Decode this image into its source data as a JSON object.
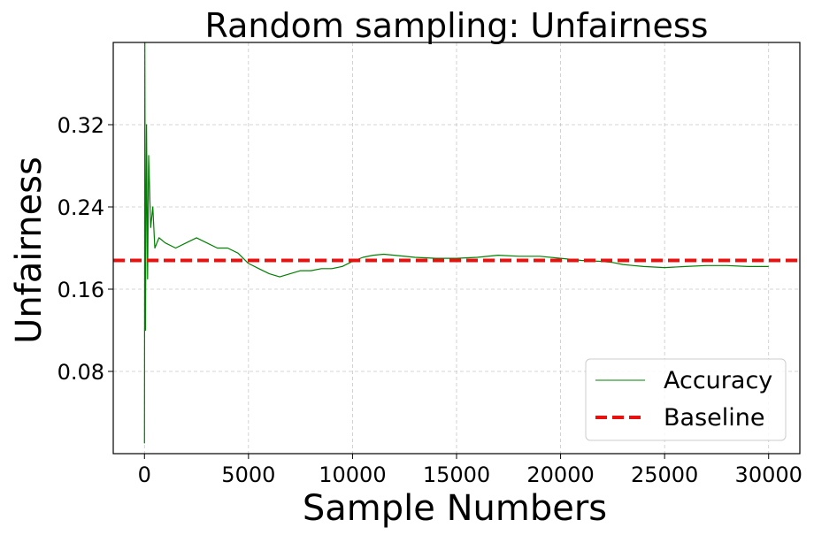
{
  "chart_data": {
    "type": "line",
    "title": "Random sampling: Unfairness",
    "xlabel": "Sample Numbers",
    "ylabel": "Unfairness",
    "xlim": [
      -1500,
      31500
    ],
    "ylim": [
      0,
      0.4
    ],
    "xticks": [
      0,
      5000,
      10000,
      15000,
      20000,
      25000,
      30000
    ],
    "xtick_labels": [
      "0",
      "5000",
      "10000",
      "15000",
      "20000",
      "25000",
      "30000"
    ],
    "yticks": [
      0.08,
      0.16,
      0.24,
      0.32
    ],
    "ytick_labels": [
      "0.08",
      "0.16",
      "0.24",
      "0.32"
    ],
    "grid": true,
    "legend_position": "bottom-right",
    "series": [
      {
        "name": "Accuracy",
        "color": "#008000",
        "style": "solid",
        "x": [
          0,
          20,
          50,
          100,
          150,
          200,
          300,
          400,
          500,
          700,
          1000,
          1500,
          2000,
          2500,
          3000,
          3500,
          4000,
          4500,
          5000,
          5500,
          6000,
          6500,
          7000,
          7500,
          8000,
          8500,
          9000,
          9500,
          10000,
          10500,
          11000,
          11500,
          12000,
          13000,
          14000,
          15000,
          16000,
          17000,
          18000,
          19000,
          20000,
          21000,
          22000,
          22500,
          23000,
          23500,
          24000,
          25000,
          26000,
          27000,
          28000,
          29000,
          30000
        ],
        "y": [
          0.01,
          0.4,
          0.12,
          0.32,
          0.17,
          0.29,
          0.22,
          0.24,
          0.2,
          0.21,
          0.205,
          0.2,
          0.205,
          0.21,
          0.205,
          0.2,
          0.2,
          0.195,
          0.185,
          0.18,
          0.175,
          0.172,
          0.175,
          0.178,
          0.178,
          0.18,
          0.18,
          0.182,
          0.187,
          0.191,
          0.193,
          0.194,
          0.193,
          0.191,
          0.19,
          0.19,
          0.191,
          0.193,
          0.192,
          0.192,
          0.19,
          0.188,
          0.187,
          0.186,
          0.184,
          0.183,
          0.182,
          0.181,
          0.182,
          0.183,
          0.183,
          0.182,
          0.182
        ]
      },
      {
        "name": "Baseline",
        "color": "#e8110f",
        "style": "dashed",
        "value": 0.188
      }
    ]
  }
}
